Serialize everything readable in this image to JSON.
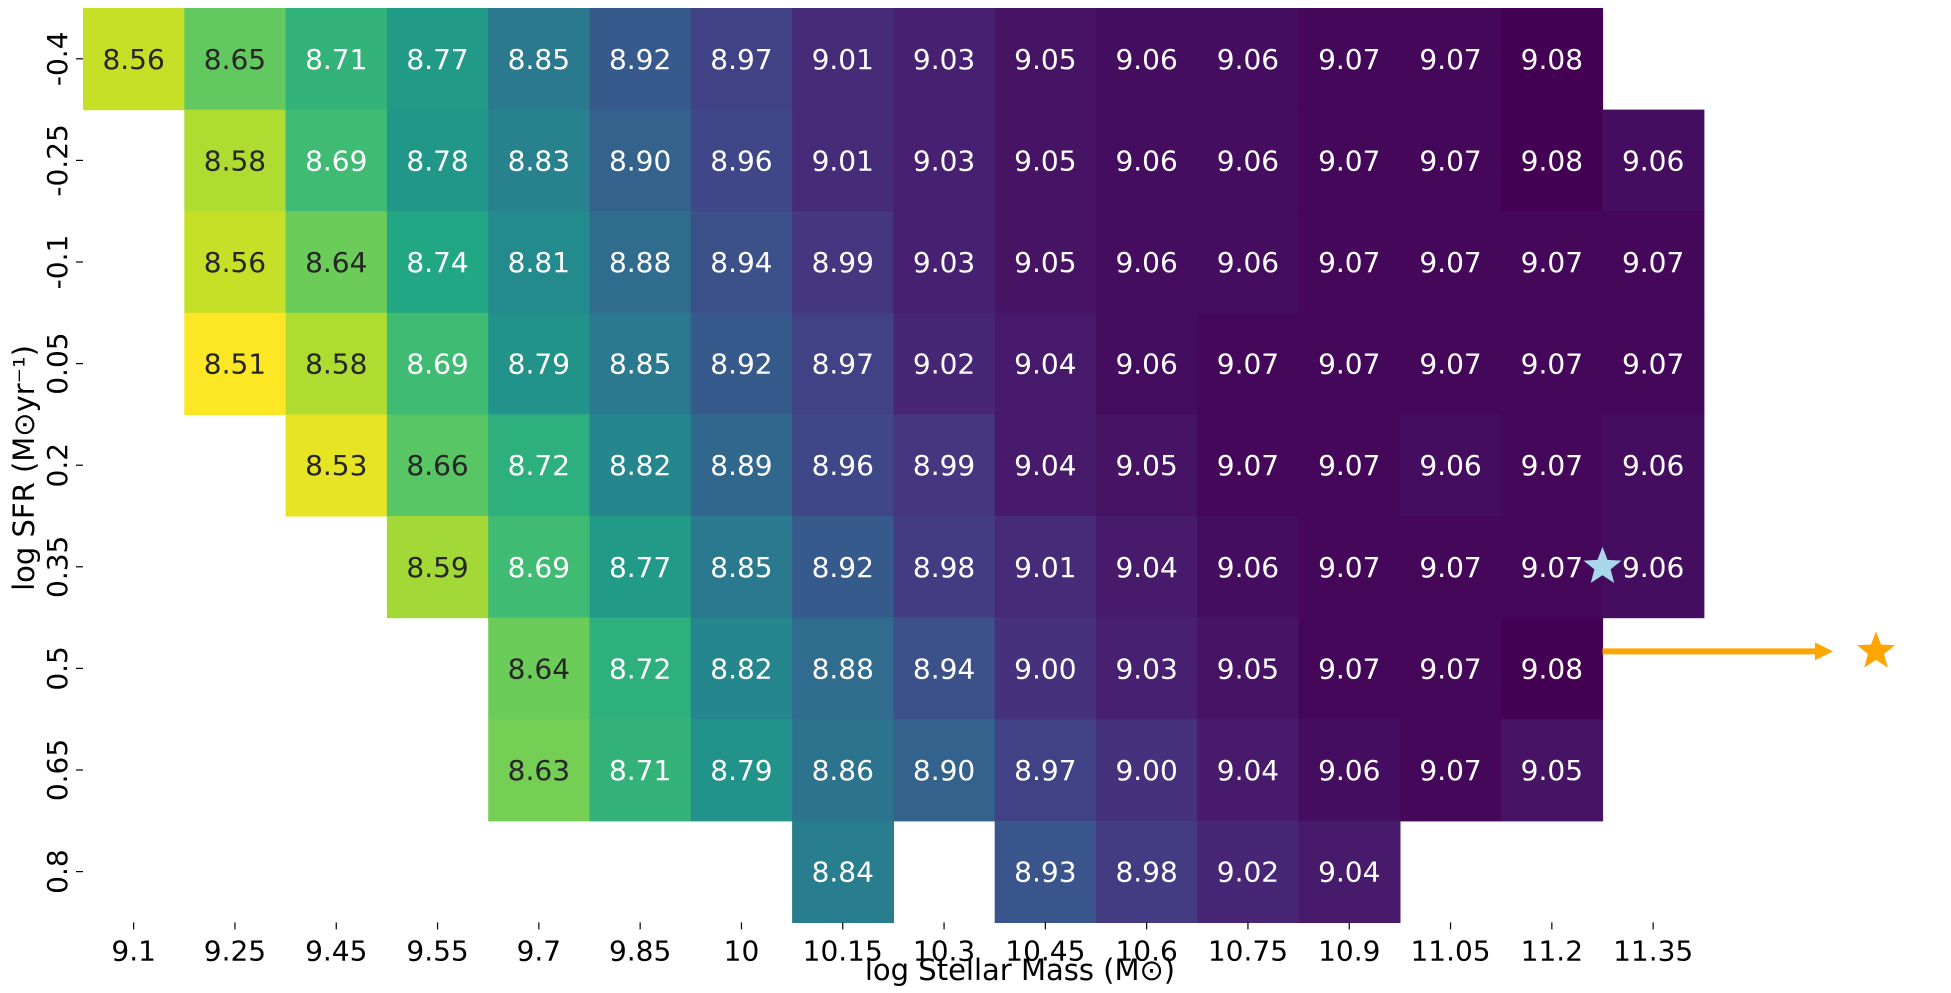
{
  "chart_data": {
    "type": "heatmap",
    "xlabel": "log Stellar Mass (M⊙)",
    "ylabel": "log SFR (M⊙yr⁻¹)",
    "x_categories": [
      "9.1",
      "9.25",
      "9.45",
      "9.55",
      "9.7",
      "9.85",
      "10",
      "10.15",
      "10.3",
      "10.45",
      "10.6",
      "10.75",
      "10.9",
      "11.05",
      "11.2",
      "11.35"
    ],
    "y_categories": [
      "-0.4",
      "-0.25",
      "-0.1",
      "0.05",
      "0.2",
      "0.35",
      "0.5",
      "0.65",
      "0.8"
    ],
    "values": [
      [
        8.56,
        8.65,
        8.71,
        8.77,
        8.85,
        8.92,
        8.97,
        9.01,
        9.03,
        9.05,
        9.06,
        9.06,
        9.07,
        9.07,
        9.08,
        null
      ],
      [
        null,
        8.58,
        8.69,
        8.78,
        8.83,
        8.9,
        8.96,
        9.01,
        9.03,
        9.05,
        9.06,
        9.06,
        9.07,
        9.07,
        9.08,
        9.06
      ],
      [
        null,
        8.56,
        8.64,
        8.74,
        8.81,
        8.88,
        8.94,
        8.99,
        9.03,
        9.05,
        9.06,
        9.06,
        9.07,
        9.07,
        9.07,
        9.07
      ],
      [
        null,
        8.51,
        8.58,
        8.69,
        8.79,
        8.85,
        8.92,
        8.97,
        9.02,
        9.04,
        9.06,
        9.07,
        9.07,
        9.07,
        9.07,
        9.07
      ],
      [
        null,
        null,
        8.53,
        8.66,
        8.72,
        8.82,
        8.89,
        8.96,
        8.99,
        9.04,
        9.05,
        9.07,
        9.07,
        9.06,
        9.07,
        9.06
      ],
      [
        null,
        null,
        null,
        8.59,
        8.69,
        8.77,
        8.85,
        8.92,
        8.98,
        9.01,
        9.04,
        9.06,
        9.07,
        9.07,
        9.07,
        9.06
      ],
      [
        null,
        null,
        null,
        null,
        8.64,
        8.72,
        8.82,
        8.88,
        8.94,
        9.0,
        9.03,
        9.05,
        9.07,
        9.07,
        9.08,
        null
      ],
      [
        null,
        null,
        null,
        null,
        8.63,
        8.71,
        8.79,
        8.86,
        8.9,
        8.97,
        9.0,
        9.04,
        9.06,
        9.07,
        9.05,
        null
      ],
      [
        null,
        null,
        null,
        null,
        null,
        null,
        null,
        8.84,
        null,
        8.93,
        8.98,
        9.02,
        9.04,
        null,
        null,
        null
      ]
    ],
    "colormap": "viridis_r",
    "color_range": [
      8.51,
      9.08
    ],
    "markers": [
      {
        "shape": "star",
        "color": "#a8d8ea",
        "x": "between 11.2 and 11.35",
        "y": "0.35"
      },
      {
        "shape": "star",
        "color": "#ffa500",
        "x": "beyond 11.35",
        "y": "0.5",
        "arrow": true
      }
    ]
  }
}
